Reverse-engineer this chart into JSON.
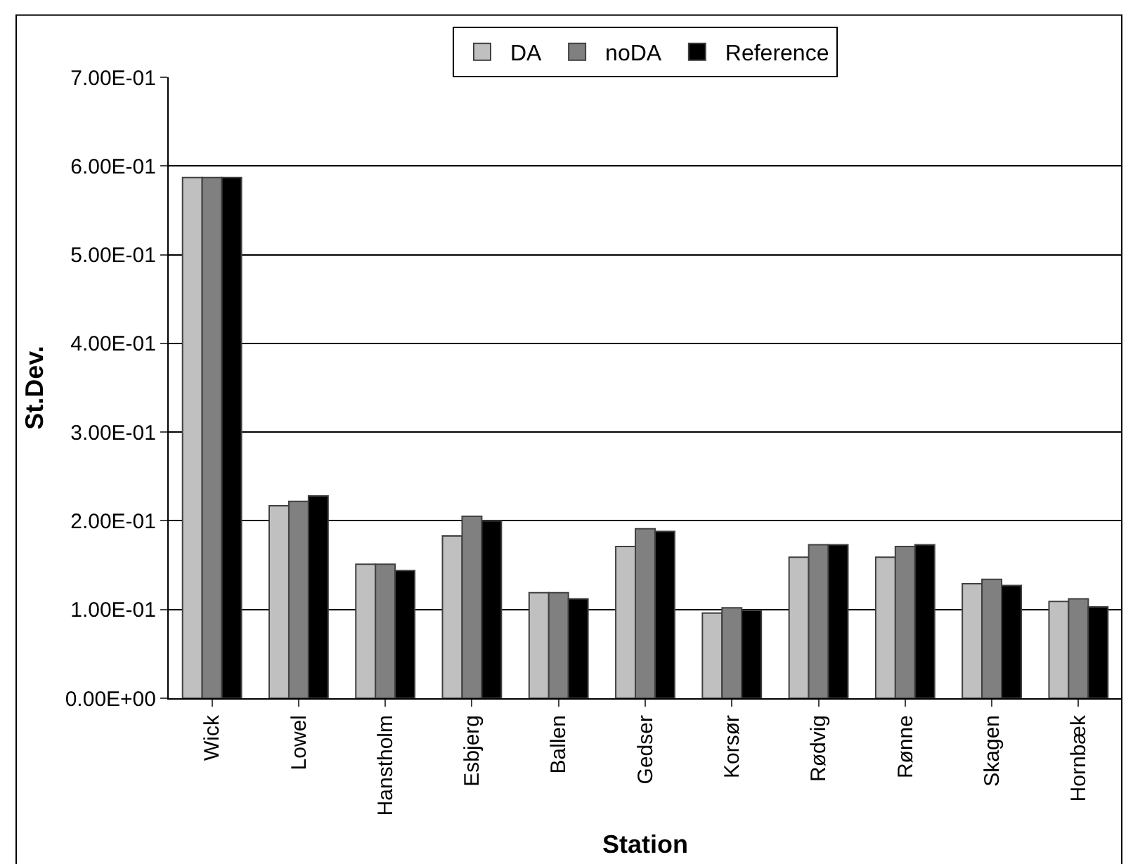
{
  "chart_data": {
    "type": "bar",
    "xlabel": "Station",
    "ylabel": "St.Dev.",
    "categories": [
      "Wick",
      "Lowel",
      "Hanstholm",
      "Esbjerg",
      "Ballen",
      "Gedser",
      "Korsør",
      "Rødvig",
      "Rønne",
      "Skagen",
      "Hornbæk"
    ],
    "series": [
      {
        "name": "DA",
        "color": "#c0c0c0",
        "values": [
          0.587,
          0.217,
          0.151,
          0.183,
          0.119,
          0.171,
          0.096,
          0.159,
          0.159,
          0.129,
          0.109
        ]
      },
      {
        "name": "noDA",
        "color": "#808080",
        "values": [
          0.587,
          0.222,
          0.151,
          0.205,
          0.119,
          0.191,
          0.102,
          0.173,
          0.171,
          0.134,
          0.112
        ]
      },
      {
        "name": "Reference",
        "color": "#000000",
        "values": [
          0.587,
          0.228,
          0.144,
          0.2,
          0.112,
          0.188,
          0.099,
          0.173,
          0.173,
          0.127,
          0.103
        ]
      }
    ],
    "ylim": [
      0,
      0.7
    ],
    "yticks": [
      {
        "value": 0,
        "label": "0.00E+00"
      },
      {
        "value": 0.1,
        "label": "1.00E-01"
      },
      {
        "value": 0.2,
        "label": "2.00E-01"
      },
      {
        "value": 0.3,
        "label": "3.00E-01"
      },
      {
        "value": 0.4,
        "label": "4.00E-01"
      },
      {
        "value": 0.5,
        "label": "5.00E-01"
      },
      {
        "value": 0.6,
        "label": "6.00E-01"
      },
      {
        "value": 0.7,
        "label": "7.00E-01"
      }
    ],
    "grid": "y",
    "legend": "top"
  }
}
